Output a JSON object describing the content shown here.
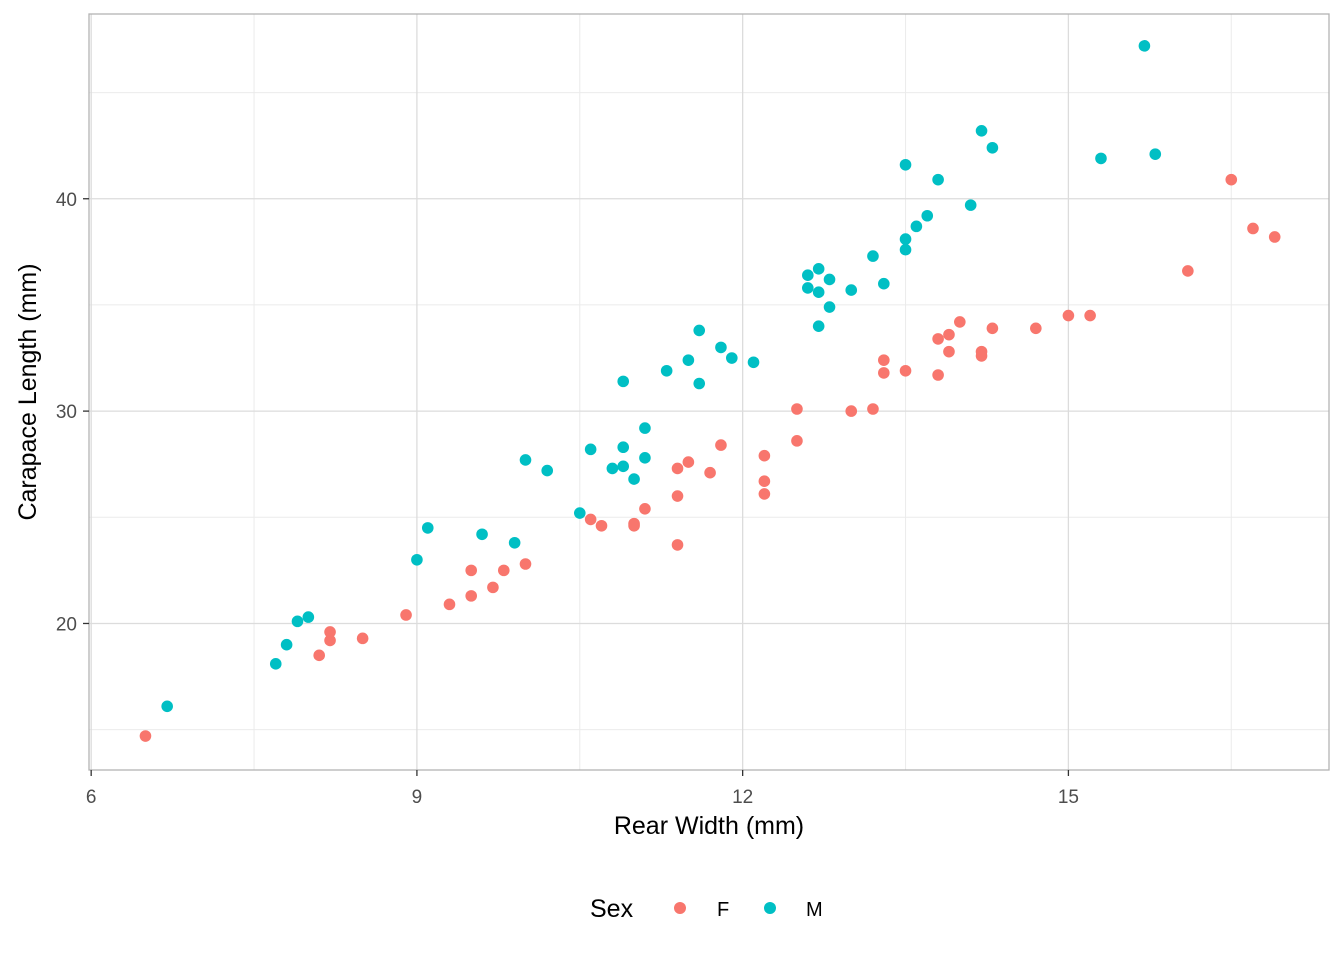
{
  "chart_data": {
    "type": "scatter",
    "title": "",
    "xlabel": "Rear Width (mm)",
    "ylabel": "Carapace Length (mm)",
    "xlim": [
      5.98,
      17.4
    ],
    "ylim": [
      13.1,
      48.7
    ],
    "xticks": [
      6,
      9,
      12,
      15
    ],
    "yticks": [
      20,
      30,
      40
    ],
    "grid": true,
    "legend": {
      "title": "Sex",
      "position": "bottom"
    },
    "series": [
      {
        "name": "F",
        "color": "#F8766D",
        "points": [
          [
            6.5,
            14.7
          ],
          [
            8.1,
            18.5
          ],
          [
            8.2,
            19.2
          ],
          [
            8.2,
            19.6
          ],
          [
            8.5,
            19.3
          ],
          [
            8.9,
            20.4
          ],
          [
            9.3,
            20.9
          ],
          [
            9.5,
            21.3
          ],
          [
            9.5,
            22.5
          ],
          [
            9.7,
            21.7
          ],
          [
            9.8,
            22.5
          ],
          [
            10.0,
            22.8
          ],
          [
            10.6,
            24.9
          ],
          [
            10.7,
            24.6
          ],
          [
            11.0,
            24.6
          ],
          [
            11.0,
            24.7
          ],
          [
            11.1,
            25.4
          ],
          [
            11.4,
            23.7
          ],
          [
            11.4,
            26.0
          ],
          [
            11.4,
            27.3
          ],
          [
            11.5,
            27.6
          ],
          [
            11.7,
            27.1
          ],
          [
            11.8,
            28.4
          ],
          [
            12.2,
            26.1
          ],
          [
            12.2,
            26.7
          ],
          [
            12.2,
            27.9
          ],
          [
            12.5,
            28.6
          ],
          [
            12.5,
            30.1
          ],
          [
            13.0,
            30.0
          ],
          [
            13.2,
            30.1
          ],
          [
            13.3,
            31.8
          ],
          [
            13.3,
            32.4
          ],
          [
            13.5,
            31.9
          ],
          [
            13.8,
            31.7
          ],
          [
            13.8,
            33.4
          ],
          [
            13.9,
            32.8
          ],
          [
            13.9,
            33.6
          ],
          [
            14.0,
            34.2
          ],
          [
            14.2,
            32.6
          ],
          [
            14.2,
            32.8
          ],
          [
            14.3,
            33.9
          ],
          [
            14.7,
            33.9
          ],
          [
            15.0,
            34.5
          ],
          [
            15.2,
            34.5
          ],
          [
            16.1,
            36.6
          ],
          [
            16.5,
            40.9
          ],
          [
            16.7,
            38.6
          ],
          [
            16.9,
            38.2
          ]
        ]
      },
      {
        "name": "M",
        "color": "#00BFC4",
        "points": [
          [
            6.7,
            16.1
          ],
          [
            7.7,
            18.1
          ],
          [
            7.8,
            19.0
          ],
          [
            7.9,
            20.1
          ],
          [
            8.0,
            20.3
          ],
          [
            9.0,
            23.0
          ],
          [
            9.1,
            24.5
          ],
          [
            9.6,
            24.2
          ],
          [
            9.9,
            23.8
          ],
          [
            10.0,
            27.7
          ],
          [
            10.2,
            27.2
          ],
          [
            10.5,
            25.2
          ],
          [
            10.6,
            28.2
          ],
          [
            10.8,
            27.3
          ],
          [
            10.9,
            27.4
          ],
          [
            10.9,
            28.3
          ],
          [
            10.9,
            31.4
          ],
          [
            11.0,
            26.8
          ],
          [
            11.1,
            27.8
          ],
          [
            11.1,
            29.2
          ],
          [
            11.3,
            31.9
          ],
          [
            11.5,
            32.4
          ],
          [
            11.6,
            31.3
          ],
          [
            11.6,
            33.8
          ],
          [
            11.8,
            33.0
          ],
          [
            11.9,
            32.5
          ],
          [
            12.1,
            32.3
          ],
          [
            12.6,
            35.8
          ],
          [
            12.6,
            36.4
          ],
          [
            12.7,
            34.0
          ],
          [
            12.7,
            35.6
          ],
          [
            12.7,
            36.7
          ],
          [
            12.8,
            34.9
          ],
          [
            12.8,
            36.2
          ],
          [
            13.0,
            35.7
          ],
          [
            13.2,
            37.3
          ],
          [
            13.3,
            36.0
          ],
          [
            13.5,
            37.6
          ],
          [
            13.5,
            38.1
          ],
          [
            13.5,
            41.6
          ],
          [
            13.6,
            38.7
          ],
          [
            13.7,
            39.2
          ],
          [
            13.8,
            40.9
          ],
          [
            14.1,
            39.7
          ],
          [
            14.2,
            43.2
          ],
          [
            14.3,
            42.4
          ],
          [
            15.3,
            41.9
          ],
          [
            15.7,
            47.2
          ],
          [
            15.8,
            42.1
          ]
        ]
      }
    ]
  }
}
